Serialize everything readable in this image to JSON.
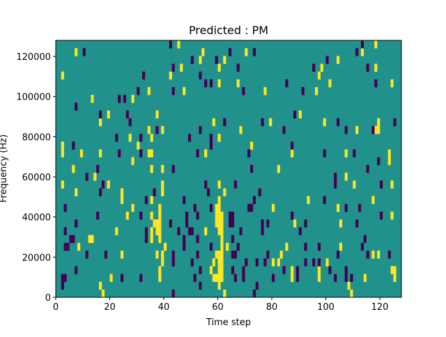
{
  "chart_data": {
    "type": "heatmap",
    "title": "Predicted : PM",
    "xlabel": "Time step",
    "ylabel": "Frequency (Hz)",
    "xlim": [
      0,
      128
    ],
    "ylim": [
      0,
      128000
    ],
    "time_steps": 128,
    "freq_bins": 33,
    "xticks": [
      "0",
      "20",
      "40",
      "60",
      "80",
      "100",
      "120"
    ],
    "xtick_values": [
      0,
      20,
      40,
      60,
      80,
      100,
      120
    ],
    "yticks": [
      "0",
      "20000",
      "40000",
      "60000",
      "80000",
      "100000",
      "120000"
    ],
    "ytick_values": [
      0,
      20000,
      40000,
      60000,
      80000,
      100000,
      120000
    ],
    "colors": {
      "background": "#21918c",
      "high": "#fde725",
      "low": "#440154"
    },
    "values": {
      "background": 0,
      "high": 1,
      "low": -1
    },
    "high_cells_by_bin": {
      "32": [
        45,
        118
      ],
      "31": [
        7,
        54,
        70,
        113
      ],
      "30": [
        53,
        62,
        104
      ],
      "29": [
        46,
        60,
        98,
        118
      ],
      "28": [
        2,
        42,
        97
      ],
      "27": [
        60,
        67,
        101,
        124
      ],
      "26": [
        34,
        47,
        77,
        96
      ],
      "25": [
        13,
        28
      ],
      "24": [],
      "23": [
        19,
        37,
        90
      ],
      "22": [
        16,
        58,
        79,
        99,
        119
      ],
      "21": [
        34,
        39,
        68,
        111,
        118,
        119
      ],
      "20": [
        27,
        35,
        60
      ],
      "19": [
        2,
        30,
        72
      ],
      "18": [
        2,
        9,
        16,
        34,
        35,
        55,
        87,
        107,
        123
      ],
      "17": [
        28,
        123
      ],
      "16": [
        6,
        35,
        39,
        82
      ],
      "15": [
        14,
        107
      ],
      "14": [
        2,
        19,
        39,
        60,
        110,
        124
      ],
      "13": [
        7,
        24,
        39,
        62
      ],
      "12": [
        24,
        35,
        60,
        93,
        117
      ],
      "11": [
        28,
        38,
        59,
        60,
        80,
        104
      ],
      "10": [
        26,
        35,
        38,
        59,
        60,
        61,
        124
      ],
      "9": [
        36,
        37,
        38,
        59,
        60,
        61,
        88,
        105
      ],
      "8": [
        22,
        35,
        37,
        38,
        55,
        60,
        61
      ],
      "7": [
        12,
        13,
        35,
        38,
        61
      ],
      "6": [
        8,
        40,
        61,
        63,
        85,
        105
      ],
      "5": [
        24,
        37,
        39,
        59,
        60,
        61,
        83,
        117,
        119
      ],
      "4": [
        39,
        58,
        60,
        61,
        80,
        82,
        100
      ],
      "3": [
        38,
        57,
        60,
        61,
        87,
        97,
        124,
        125
      ],
      "2": [
        20,
        38,
        58,
        59,
        60,
        61,
        87,
        97,
        114,
        125
      ],
      "1": [
        16,
        60,
        108
      ],
      "0": [
        17,
        62,
        109
      ]
    },
    "low_cells_by_bin": {
      "32": [
        42,
        113
      ],
      "31": [
        10,
        64,
        73,
        111
      ],
      "30": [
        50,
        59,
        100
      ],
      "29": [
        43,
        67,
        95,
        115
      ],
      "28": [
        32,
        53
      ],
      "27": [
        55,
        57,
        85,
        118
      ],
      "26": [
        30,
        43,
        69,
        91
      ],
      "25": [
        23,
        25
      ],
      "24": [
        7
      ],
      "23": [
        16,
        26,
        88
      ],
      "22": [
        27,
        62,
        76,
        104,
        125
      ],
      "21": [
        37,
        53,
        84,
        107,
        117
      ],
      "20": [
        22,
        31,
        49,
        57
      ],
      "19": [
        6,
        57,
        87
      ],
      "18": [
        23,
        31,
        52,
        71,
        99,
        110
      ],
      "17": [
        119
      ],
      "16": [
        15,
        43,
        72,
        115
      ],
      "15": [
        11,
        103
      ],
      "14": [
        17,
        55,
        66,
        103,
        120
      ],
      "13": [
        16,
        36,
        56,
        75
      ],
      "12": [
        33,
        47,
        73,
        99
      ],
      "11": [
        3,
        51,
        57,
        71,
        72,
        107,
        112
      ],
      "10": [
        15,
        31,
        48,
        52,
        64,
        65,
        87,
        120
      ],
      "9": [
        7,
        42,
        48,
        64,
        65,
        76,
        78,
        92,
        111
      ],
      "8": [
        3,
        33,
        45,
        49,
        50,
        68,
        76,
        90
      ],
      "7": [
        5,
        6,
        33,
        47,
        52,
        65,
        114
      ],
      "6": [
        3,
        4,
        47,
        57,
        67,
        92,
        97,
        113
      ],
      "5": [
        11,
        18,
        43,
        52,
        65,
        66,
        78,
        104,
        115,
        123
      ],
      "4": [
        43,
        50,
        70,
        74,
        77,
        92,
        95,
        97
      ],
      "3": [
        7,
        53,
        65,
        69,
        84,
        89,
        101,
        107
      ],
      "2": [
        2,
        3,
        24,
        31,
        51,
        66,
        69,
        80,
        89,
        103,
        107,
        109
      ],
      "1": [
        2,
        53,
        74
      ],
      "0": [
        43,
        73
      ]
    }
  }
}
